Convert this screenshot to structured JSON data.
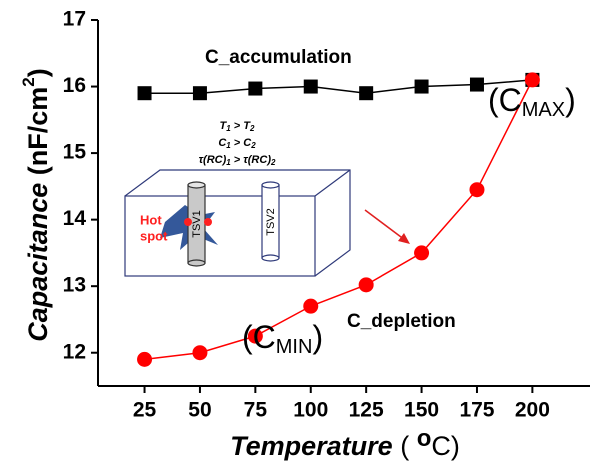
{
  "chart_data": {
    "type": "line",
    "xlabel": [
      "Temperature",
      " ( ",
      "o",
      "C)"
    ],
    "ylabel": [
      "Capacitance",
      " (nF/cm",
      "2",
      ")"
    ],
    "x": [
      25,
      50,
      75,
      100,
      125,
      150,
      175,
      200
    ],
    "series": [
      {
        "name": "C_accumulation",
        "color": "#000000",
        "marker": "square",
        "values": [
          15.9,
          15.9,
          15.97,
          16.0,
          15.9,
          16.0,
          16.03,
          16.1
        ]
      },
      {
        "name": "C_depletion",
        "color": "#ff0000",
        "marker": "circle",
        "values": [
          11.9,
          12.0,
          12.25,
          12.7,
          13.02,
          13.5,
          14.45,
          16.1
        ]
      }
    ],
    "xlim": [
      4,
      226
    ],
    "xticks": [
      25,
      50,
      75,
      100,
      125,
      150,
      175,
      200
    ],
    "ylim": [
      11.5,
      17
    ],
    "yticks": [
      12,
      13,
      14,
      15,
      16,
      17
    ],
    "annotations": {
      "cmax": [
        "(C",
        "MAX",
        ")"
      ],
      "cmin": [
        "(C",
        "MIN",
        ")"
      ]
    },
    "inset": {
      "lines": [
        [
          "T",
          "1",
          " > T",
          "2"
        ],
        [
          "C",
          "1",
          " > C",
          "2"
        ],
        [
          "τ(RC)",
          "1",
          " > τ(RC)",
          "2"
        ]
      ],
      "hot_spot": [
        "Hot",
        "spot"
      ],
      "tsv1": "TSV1",
      "tsv2": "TSV2"
    }
  }
}
